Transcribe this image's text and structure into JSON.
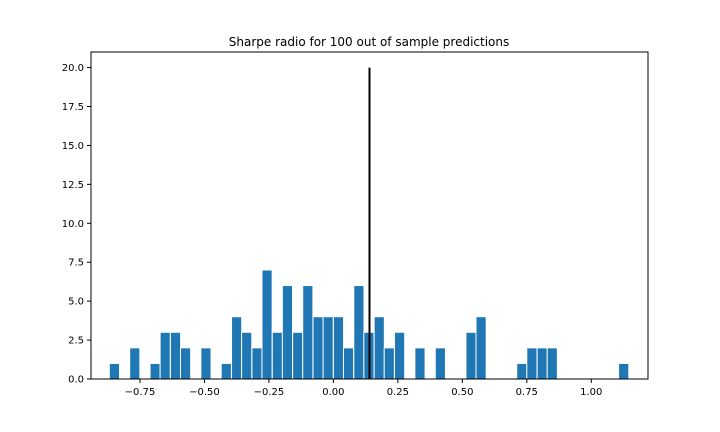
{
  "chart_data": {
    "type": "bar",
    "title": "Sharpe radio for 100 out of sample predictions",
    "xlabel": "",
    "ylabel": "",
    "xlim": [
      -0.94,
      1.22
    ],
    "ylim": [
      0,
      21
    ],
    "bin_width": 0.0395,
    "bar_color": "#1f77b4",
    "bins": [
      {
        "x": -0.869,
        "count": 1
      },
      {
        "x": -0.79,
        "count": 2
      },
      {
        "x": -0.711,
        "count": 1
      },
      {
        "x": -0.672,
        "count": 3
      },
      {
        "x": -0.632,
        "count": 3
      },
      {
        "x": -0.593,
        "count": 2
      },
      {
        "x": -0.514,
        "count": 2
      },
      {
        "x": -0.435,
        "count": 1
      },
      {
        "x": -0.395,
        "count": 4
      },
      {
        "x": -0.356,
        "count": 3
      },
      {
        "x": -0.316,
        "count": 2
      },
      {
        "x": -0.277,
        "count": 7
      },
      {
        "x": -0.237,
        "count": 3
      },
      {
        "x": -0.198,
        "count": 6
      },
      {
        "x": -0.158,
        "count": 3
      },
      {
        "x": -0.119,
        "count": 6
      },
      {
        "x": -0.079,
        "count": 4
      },
      {
        "x": -0.04,
        "count": 4
      },
      {
        "x": 0.0,
        "count": 4
      },
      {
        "x": 0.039,
        "count": 2
      },
      {
        "x": 0.079,
        "count": 6
      },
      {
        "x": 0.118,
        "count": 3
      },
      {
        "x": 0.158,
        "count": 4
      },
      {
        "x": 0.197,
        "count": 2
      },
      {
        "x": 0.237,
        "count": 3
      },
      {
        "x": 0.316,
        "count": 2
      },
      {
        "x": 0.395,
        "count": 2
      },
      {
        "x": 0.514,
        "count": 3
      },
      {
        "x": 0.553,
        "count": 4
      },
      {
        "x": 0.711,
        "count": 1
      },
      {
        "x": 0.75,
        "count": 2
      },
      {
        "x": 0.79,
        "count": 2
      },
      {
        "x": 0.829,
        "count": 2
      },
      {
        "x": 1.106,
        "count": 1
      }
    ],
    "vline": {
      "x": 0.14,
      "ymin": 0,
      "ymax": 20,
      "color": "#000000"
    },
    "x_ticks": [
      {
        "value": -0.75,
        "label": "−0.75"
      },
      {
        "value": -0.5,
        "label": "−0.50"
      },
      {
        "value": -0.25,
        "label": "−0.25"
      },
      {
        "value": 0.0,
        "label": "0.00"
      },
      {
        "value": 0.25,
        "label": "0.25"
      },
      {
        "value": 0.5,
        "label": "0.50"
      },
      {
        "value": 0.75,
        "label": "0.75"
      },
      {
        "value": 1.0,
        "label": "1.00"
      }
    ],
    "y_ticks": [
      {
        "value": 0.0,
        "label": "0.0"
      },
      {
        "value": 2.5,
        "label": "2.5"
      },
      {
        "value": 5.0,
        "label": "5.0"
      },
      {
        "value": 7.5,
        "label": "7.5"
      },
      {
        "value": 10.0,
        "label": "10.0"
      },
      {
        "value": 12.5,
        "label": "12.5"
      },
      {
        "value": 15.0,
        "label": "15.0"
      },
      {
        "value": 17.5,
        "label": "17.5"
      },
      {
        "value": 20.0,
        "label": "20.0"
      }
    ],
    "grid": false,
    "legend": "none"
  }
}
